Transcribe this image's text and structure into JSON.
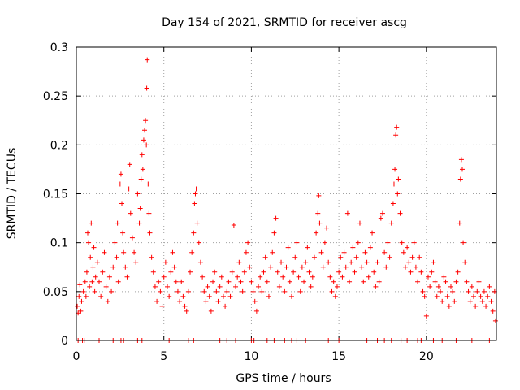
{
  "chart_data": {
    "type": "scatter",
    "title": "Day 154 of 2021, SRMTID for receiver ascg",
    "xlabel": "GPS time / hours",
    "ylabel": "SRMTID / TECUs",
    "xlim": [
      0,
      24
    ],
    "ylim": [
      0,
      0.3
    ],
    "xticks": [
      0,
      5,
      10,
      15,
      20
    ],
    "xtick_labels": [
      "0",
      "5",
      "10",
      "15",
      "20"
    ],
    "yticks": [
      0,
      0.05,
      0.1,
      0.15,
      0.2,
      0.25,
      0.3
    ],
    "ytick_labels": [
      "0",
      "0.05",
      "0.1",
      "0.15",
      "0.2",
      "0.25",
      "0.3"
    ],
    "grid": true,
    "marker": "+",
    "series_color": "#ff0000",
    "series": [
      {
        "name": "SRMTID",
        "points": [
          [
            0.05,
            0.035
          ],
          [
            0.1,
            0.028
          ],
          [
            0.15,
            0.045
          ],
          [
            0.2,
            0.057
          ],
          [
            0.25,
            0.03
          ],
          [
            0.3,
            0.04
          ],
          [
            0.4,
            0.05
          ],
          [
            0.5,
            0.06
          ],
          [
            0.55,
            0.045
          ],
          [
            0.6,
            0.07
          ],
          [
            0.65,
            0.11
          ],
          [
            0.7,
            0.1
          ],
          [
            0.75,
            0.055
          ],
          [
            0.8,
            0.085
          ],
          [
            0.85,
            0.12
          ],
          [
            0.9,
            0.06
          ],
          [
            0.95,
            0.075
          ],
          [
            1.0,
            0.095
          ],
          [
            1.05,
            0.05
          ],
          [
            1.1,
            0.065
          ],
          [
            1.2,
            0.08
          ],
          [
            1.3,
            0.06
          ],
          [
            1.4,
            0.045
          ],
          [
            1.5,
            0.07
          ],
          [
            1.6,
            0.09
          ],
          [
            1.7,
            0.055
          ],
          [
            1.8,
            0.04
          ],
          [
            1.9,
            0.065
          ],
          [
            2.0,
            0.05
          ],
          [
            2.1,
            0.075
          ],
          [
            2.2,
            0.1
          ],
          [
            2.3,
            0.085
          ],
          [
            2.35,
            0.12
          ],
          [
            2.4,
            0.06
          ],
          [
            2.5,
            0.16
          ],
          [
            2.55,
            0.17
          ],
          [
            2.6,
            0.14
          ],
          [
            2.65,
            0.11
          ],
          [
            2.7,
            0.09
          ],
          [
            2.8,
            0.075
          ],
          [
            2.9,
            0.065
          ],
          [
            3.0,
            0.155
          ],
          [
            3.05,
            0.18
          ],
          [
            3.1,
            0.13
          ],
          [
            3.2,
            0.105
          ],
          [
            3.3,
            0.09
          ],
          [
            3.4,
            0.08
          ],
          [
            3.5,
            0.15
          ],
          [
            3.6,
            0.12
          ],
          [
            3.65,
            0.135
          ],
          [
            3.7,
            0.165
          ],
          [
            3.75,
            0.19
          ],
          [
            3.8,
            0.175
          ],
          [
            3.85,
            0.205
          ],
          [
            3.9,
            0.215
          ],
          [
            3.95,
            0.225
          ],
          [
            4.0,
            0.2
          ],
          [
            4.02,
            0.258
          ],
          [
            4.05,
            0.287
          ],
          [
            4.1,
            0.16
          ],
          [
            4.15,
            0.13
          ],
          [
            4.2,
            0.11
          ],
          [
            4.3,
            0.085
          ],
          [
            4.4,
            0.07
          ],
          [
            4.5,
            0.055
          ],
          [
            4.6,
            0.04
          ],
          [
            4.7,
            0.06
          ],
          [
            4.8,
            0.05
          ],
          [
            4.9,
            0.035
          ],
          [
            5.0,
            0.065
          ],
          [
            5.1,
            0.08
          ],
          [
            5.2,
            0.055
          ],
          [
            5.3,
            0.045
          ],
          [
            5.4,
            0.07
          ],
          [
            5.5,
            0.09
          ],
          [
            5.6,
            0.075
          ],
          [
            5.7,
            0.06
          ],
          [
            5.8,
            0.05
          ],
          [
            5.9,
            0.04
          ],
          [
            6.0,
            0.06
          ],
          [
            6.1,
            0.045
          ],
          [
            6.2,
            0.035
          ],
          [
            6.3,
            0.03
          ],
          [
            6.4,
            0.05
          ],
          [
            6.5,
            0.07
          ],
          [
            6.6,
            0.09
          ],
          [
            6.7,
            0.11
          ],
          [
            6.75,
            0.14
          ],
          [
            6.8,
            0.15
          ],
          [
            6.85,
            0.155
          ],
          [
            6.9,
            0.12
          ],
          [
            7.0,
            0.1
          ],
          [
            7.1,
            0.08
          ],
          [
            7.2,
            0.065
          ],
          [
            7.3,
            0.05
          ],
          [
            7.4,
            0.04
          ],
          [
            7.5,
            0.055
          ],
          [
            7.6,
            0.045
          ],
          [
            7.7,
            0.03
          ],
          [
            7.8,
            0.06
          ],
          [
            7.9,
            0.07
          ],
          [
            8.0,
            0.05
          ],
          [
            8.1,
            0.04
          ],
          [
            8.2,
            0.055
          ],
          [
            8.3,
            0.065
          ],
          [
            8.4,
            0.045
          ],
          [
            8.5,
            0.035
          ],
          [
            8.6,
            0.05
          ],
          [
            8.7,
            0.06
          ],
          [
            8.8,
            0.045
          ],
          [
            8.9,
            0.07
          ],
          [
            9.0,
            0.118
          ],
          [
            9.1,
            0.055
          ],
          [
            9.2,
            0.065
          ],
          [
            9.3,
            0.08
          ],
          [
            9.4,
            0.06
          ],
          [
            9.5,
            0.05
          ],
          [
            9.6,
            0.07
          ],
          [
            9.7,
            0.09
          ],
          [
            9.8,
            0.1
          ],
          [
            9.9,
            0.075
          ],
          [
            10.0,
            0.06
          ],
          [
            10.1,
            0.05
          ],
          [
            10.2,
            0.04
          ],
          [
            10.3,
            0.03
          ],
          [
            10.4,
            0.055
          ],
          [
            10.5,
            0.065
          ],
          [
            10.6,
            0.05
          ],
          [
            10.7,
            0.07
          ],
          [
            10.8,
            0.085
          ],
          [
            10.9,
            0.06
          ],
          [
            11.0,
            0.045
          ],
          [
            11.1,
            0.075
          ],
          [
            11.2,
            0.09
          ],
          [
            11.3,
            0.11
          ],
          [
            11.4,
            0.125
          ],
          [
            11.5,
            0.07
          ],
          [
            11.6,
            0.055
          ],
          [
            11.7,
            0.08
          ],
          [
            11.8,
            0.065
          ],
          [
            11.9,
            0.05
          ],
          [
            12.0,
            0.075
          ],
          [
            12.1,
            0.095
          ],
          [
            12.2,
            0.06
          ],
          [
            12.3,
            0.045
          ],
          [
            12.4,
            0.07
          ],
          [
            12.5,
            0.085
          ],
          [
            12.6,
            0.1
          ],
          [
            12.7,
            0.065
          ],
          [
            12.8,
            0.05
          ],
          [
            12.9,
            0.075
          ],
          [
            13.0,
            0.06
          ],
          [
            13.1,
            0.08
          ],
          [
            13.2,
            0.095
          ],
          [
            13.3,
            0.07
          ],
          [
            13.4,
            0.055
          ],
          [
            13.5,
            0.065
          ],
          [
            13.6,
            0.085
          ],
          [
            13.7,
            0.11
          ],
          [
            13.8,
            0.13
          ],
          [
            13.85,
            0.148
          ],
          [
            13.9,
            0.12
          ],
          [
            14.0,
            0.09
          ],
          [
            14.1,
            0.075
          ],
          [
            14.2,
            0.1
          ],
          [
            14.3,
            0.115
          ],
          [
            14.4,
            0.08
          ],
          [
            14.5,
            0.065
          ],
          [
            14.6,
            0.05
          ],
          [
            14.7,
            0.06
          ],
          [
            14.8,
            0.045
          ],
          [
            14.9,
            0.055
          ],
          [
            15.0,
            0.07
          ],
          [
            15.1,
            0.085
          ],
          [
            15.2,
            0.065
          ],
          [
            15.3,
            0.09
          ],
          [
            15.4,
            0.075
          ],
          [
            15.5,
            0.13
          ],
          [
            15.6,
            0.06
          ],
          [
            15.7,
            0.08
          ],
          [
            15.8,
            0.095
          ],
          [
            15.9,
            0.07
          ],
          [
            16.0,
            0.085
          ],
          [
            16.1,
            0.1
          ],
          [
            16.2,
            0.12
          ],
          [
            16.3,
            0.075
          ],
          [
            16.4,
            0.06
          ],
          [
            16.5,
            0.09
          ],
          [
            16.6,
            0.08
          ],
          [
            16.7,
            0.065
          ],
          [
            16.8,
            0.095
          ],
          [
            16.9,
            0.11
          ],
          [
            17.0,
            0.07
          ],
          [
            17.1,
            0.055
          ],
          [
            17.2,
            0.08
          ],
          [
            17.3,
            0.06
          ],
          [
            17.4,
            0.125
          ],
          [
            17.5,
            0.13
          ],
          [
            17.6,
            0.09
          ],
          [
            17.7,
            0.075
          ],
          [
            17.8,
            0.1
          ],
          [
            17.9,
            0.085
          ],
          [
            18.0,
            0.12
          ],
          [
            18.1,
            0.14
          ],
          [
            18.15,
            0.16
          ],
          [
            18.2,
            0.175
          ],
          [
            18.25,
            0.21
          ],
          [
            18.3,
            0.218
          ],
          [
            18.35,
            0.15
          ],
          [
            18.4,
            0.165
          ],
          [
            18.5,
            0.13
          ],
          [
            18.6,
            0.1
          ],
          [
            18.7,
            0.09
          ],
          [
            18.8,
            0.075
          ],
          [
            18.9,
            0.095
          ],
          [
            19.0,
            0.08
          ],
          [
            19.1,
            0.07
          ],
          [
            19.2,
            0.085
          ],
          [
            19.3,
            0.1
          ],
          [
            19.4,
            0.075
          ],
          [
            19.5,
            0.06
          ],
          [
            19.6,
            0.085
          ],
          [
            19.7,
            0.07
          ],
          [
            19.8,
            0.05
          ],
          [
            19.9,
            0.045
          ],
          [
            20.0,
            0.025
          ],
          [
            20.1,
            0.065
          ],
          [
            20.2,
            0.055
          ],
          [
            20.3,
            0.07
          ],
          [
            20.4,
            0.08
          ],
          [
            20.5,
            0.06
          ],
          [
            20.6,
            0.045
          ],
          [
            20.7,
            0.055
          ],
          [
            20.8,
            0.05
          ],
          [
            20.9,
            0.04
          ],
          [
            21.0,
            0.065
          ],
          [
            21.1,
            0.06
          ],
          [
            21.2,
            0.045
          ],
          [
            21.3,
            0.035
          ],
          [
            21.4,
            0.055
          ],
          [
            21.5,
            0.05
          ],
          [
            21.6,
            0.04
          ],
          [
            21.7,
            0.06
          ],
          [
            21.8,
            0.07
          ],
          [
            21.9,
            0.12
          ],
          [
            21.95,
            0.165
          ],
          [
            22.0,
            0.185
          ],
          [
            22.05,
            0.175
          ],
          [
            22.1,
            0.1
          ],
          [
            22.2,
            0.08
          ],
          [
            22.3,
            0.06
          ],
          [
            22.4,
            0.05
          ],
          [
            22.5,
            0.04
          ],
          [
            22.6,
            0.055
          ],
          [
            22.7,
            0.045
          ],
          [
            22.8,
            0.035
          ],
          [
            22.9,
            0.05
          ],
          [
            23.0,
            0.06
          ],
          [
            23.1,
            0.045
          ],
          [
            23.2,
            0.04
          ],
          [
            23.3,
            0.05
          ],
          [
            23.4,
            0.035
          ],
          [
            23.5,
            0.045
          ],
          [
            23.6,
            0.055
          ],
          [
            23.7,
            0.04
          ],
          [
            23.8,
            0.03
          ],
          [
            23.9,
            0.05
          ],
          [
            23.95,
            0.02
          ]
        ]
      }
    ],
    "zero_points_x": [
      0.1,
      0.35,
      0.45,
      1.3,
      2.1,
      2.55,
      2.7,
      3.5,
      3.75,
      5.3,
      6.4,
      6.7,
      8.2,
      8.6,
      9.1,
      10.0,
      10.15,
      10.9,
      11.3,
      11.9,
      12.3,
      12.6,
      13.1,
      14.4,
      15.0,
      16.6,
      17.2,
      17.6,
      18.0,
      18.55,
      18.9,
      19.5,
      19.7,
      20.4,
      20.9,
      21.7,
      22.6,
      23.6
    ]
  }
}
